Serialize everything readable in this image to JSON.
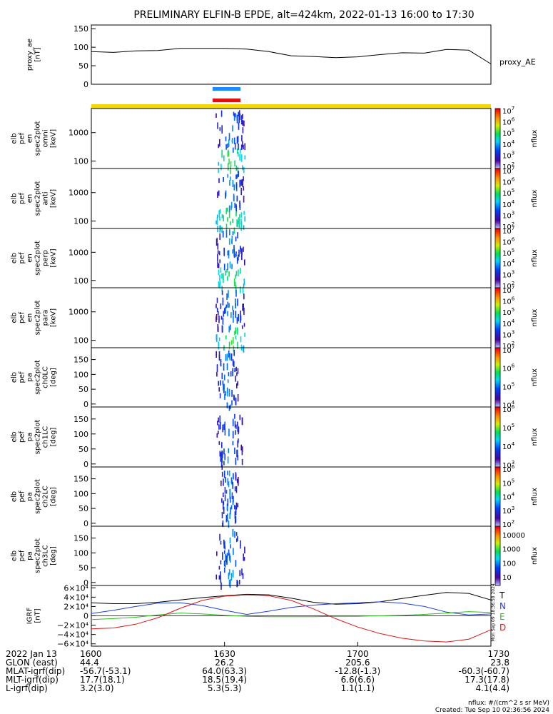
{
  "title": "PRELIMINARY ELFIN-B EPDE, alt=424km, 2022-01-13 16:00 to 17:30",
  "colors": {
    "blue_bar": "#1a8cff",
    "red_bar": "#e01010",
    "yellow_bar": "#f2d700",
    "trace_black": "#000000",
    "trace_blue": "#1f3fd8",
    "trace_green": "#2bbf1f",
    "trace_red": "#d81818"
  },
  "chart_data": [
    {
      "type": "line",
      "name": "proxy_ae",
      "ylabel_lines": [
        "proxy_ae",
        "[nT]"
      ],
      "legend": "proxy_AE",
      "ylim": [
        0,
        160
      ],
      "yticks": [
        0,
        50,
        100,
        150
      ],
      "x_minutes": [
        0,
        5,
        10,
        15,
        20,
        25,
        30,
        35,
        40,
        45,
        50,
        55,
        60,
        65,
        70,
        75,
        80,
        85,
        90
      ],
      "values": [
        88,
        86,
        90,
        91,
        97,
        97,
        97,
        95,
        88,
        77,
        75,
        72,
        74,
        80,
        85,
        84,
        94,
        92,
        55
      ]
    },
    {
      "type": "heatmap",
      "name": "spec2plot_omni",
      "ylabel_lines": [
        "elb",
        "pef",
        "en",
        "spec2plot",
        "omni",
        "[keV]"
      ],
      "yscale": "log",
      "ylim": [
        55,
        7000
      ],
      "yticks": [
        100,
        1000
      ],
      "cbar_ticks_exp": [
        2,
        3,
        4,
        5,
        6,
        7
      ],
      "cbar_label": "nflux",
      "activity_minutes": [
        28,
        34.5
      ]
    },
    {
      "type": "heatmap",
      "name": "spec2plot_anti",
      "ylabel_lines": [
        "elb",
        "pef",
        "en",
        "spec2plot",
        "anti",
        "[keV]"
      ],
      "yscale": "log",
      "ylim": [
        55,
        7000
      ],
      "yticks": [
        100,
        1000
      ],
      "cbar_ticks_exp": [
        2,
        3,
        4,
        5,
        6,
        7
      ],
      "cbar_label": "nflux",
      "activity_minutes": [
        28,
        34.5
      ]
    },
    {
      "type": "heatmap",
      "name": "spec2plot_perp",
      "ylabel_lines": [
        "elb",
        "pef",
        "en",
        "spec2plot",
        "perp",
        "[keV]"
      ],
      "yscale": "log",
      "ylim": [
        55,
        7000
      ],
      "yticks": [
        100,
        1000
      ],
      "cbar_ticks_exp": [
        2,
        3,
        4,
        5,
        6,
        7
      ],
      "cbar_label": "nflux",
      "activity_minutes": [
        28,
        34.5
      ]
    },
    {
      "type": "heatmap",
      "name": "spec2plot_para",
      "ylabel_lines": [
        "elb",
        "pef",
        "en",
        "spec2plot",
        "para",
        "[keV]"
      ],
      "yscale": "log",
      "ylim": [
        55,
        7000
      ],
      "yticks": [
        100,
        1000
      ],
      "cbar_ticks_exp": [
        2,
        3,
        4,
        5,
        6,
        7
      ],
      "cbar_label": "nflux",
      "activity_minutes": [
        28,
        34.5
      ]
    },
    {
      "type": "heatmap",
      "name": "spec2plot_ch0LC",
      "ylabel_lines": [
        "elb",
        "pef",
        "pa",
        "spec2plot",
        "ch0LC",
        "[deg]"
      ],
      "yscale": "linear",
      "ylim": [
        -10,
        190
      ],
      "yticks": [
        0,
        50,
        100,
        150
      ],
      "cbar_ticks_exp": [
        4,
        5,
        6,
        7
      ],
      "cbar_label": "nflux",
      "activity_minutes": [
        28,
        33
      ]
    },
    {
      "type": "heatmap",
      "name": "spec2plot_ch1LC",
      "ylabel_lines": [
        "elb",
        "pef",
        "pa",
        "spec2plot",
        "ch1LC",
        "[deg]"
      ],
      "yscale": "linear",
      "ylim": [
        -10,
        190
      ],
      "yticks": [
        0,
        50,
        100,
        150
      ],
      "cbar_ticks_exp": [
        3,
        4,
        5,
        6
      ],
      "cbar_label": "nflux",
      "activity_minutes": [
        28,
        34
      ]
    },
    {
      "type": "heatmap",
      "name": "spec2plot_ch2LC",
      "ylabel_lines": [
        "elb",
        "pef",
        "pa",
        "spec2plot",
        "ch2LC",
        "[deg]"
      ],
      "yscale": "linear",
      "ylim": [
        -10,
        190
      ],
      "yticks": [
        0,
        50,
        100,
        150
      ],
      "cbar_ticks_exp": [
        2,
        3,
        4,
        5,
        6
      ],
      "cbar_label": "nflux",
      "activity_minutes": [
        29,
        33
      ]
    },
    {
      "type": "heatmap",
      "name": "spec2plot_ch3LC",
      "ylabel_lines": [
        "elb",
        "pef",
        "pa",
        "spec2plot",
        "ch3LC",
        "[deg]"
      ],
      "yscale": "linear",
      "ylim": [
        -10,
        190
      ],
      "yticks": [
        0,
        50,
        100,
        150
      ],
      "cbar_ticks_lin": [
        "10",
        "100",
        "1000",
        "10000"
      ],
      "cbar_label": "nflux",
      "activity_minutes": [
        28,
        34.5
      ]
    },
    {
      "type": "line",
      "name": "IGRF",
      "ylabel_lines": [
        "IGRF",
        "[nT]"
      ],
      "ylim": [
        -65000,
        65000
      ],
      "ytick_values": [
        60000,
        40000,
        20000,
        0,
        -20000,
        -40000,
        -60000
      ],
      "ytick_labels": [
        "6×10⁴",
        "4×10⁴",
        "2×10⁴",
        "0",
        "−2×10⁴",
        "−4×10⁴",
        "−6×10⁴"
      ],
      "x_minutes": [
        0,
        5,
        10,
        15,
        20,
        25,
        30,
        35,
        40,
        45,
        50,
        55,
        60,
        65,
        70,
        75,
        80,
        85,
        90
      ],
      "series": [
        {
          "name": "T",
          "color": "#000000",
          "values": [
            28000,
            26000,
            26000,
            29000,
            34000,
            39000,
            43000,
            46000,
            45000,
            38000,
            29000,
            25000,
            26000,
            30000,
            37000,
            44000,
            50000,
            48000,
            34000
          ]
        },
        {
          "name": "N",
          "color": "#1f3fd8",
          "values": [
            5000,
            12000,
            20000,
            27000,
            28000,
            22000,
            12000,
            3000,
            10000,
            18000,
            23000,
            26000,
            28000,
            30000,
            27000,
            20000,
            8000,
            2000,
            4000
          ]
        },
        {
          "name": "E",
          "color": "#2bbf1f",
          "values": [
            -8000,
            -6000,
            -3000,
            2000,
            6000,
            4000,
            1000,
            -1000,
            -2000,
            -2000,
            -2000,
            -1000,
            -1000,
            0,
            1000,
            3000,
            6000,
            9000,
            7000
          ]
        },
        {
          "name": "D",
          "color": "#d81818",
          "values": [
            -28000,
            -26000,
            -18000,
            -4000,
            16000,
            33000,
            42000,
            45000,
            43000,
            33000,
            15000,
            -6000,
            -24000,
            -38000,
            -48000,
            -54000,
            -56000,
            -50000,
            -30000
          ]
        }
      ]
    }
  ],
  "x_axis": {
    "labels": [
      "1600",
      "1630",
      "1700",
      "1730"
    ],
    "label_minutes": [
      0,
      30,
      60,
      90
    ]
  },
  "ephemeris": {
    "rows": [
      {
        "label": "2022 Jan 13",
        "values": [
          "1600",
          "1630",
          "1700",
          "1730"
        ]
      },
      {
        "label": "GLON (east)",
        "values": [
          "44.4",
          "26.2",
          "205.6",
          "23.8"
        ]
      },
      {
        "label": "MLAT-igrf(dip)",
        "values": [
          "-56.7(-53.1)",
          "64.0(63.3)",
          "-12.8(-1.3)",
          "-60.3(-60.7)"
        ]
      },
      {
        "label": "MLT-igrf(dip)",
        "values": [
          "17.7(18.1)",
          "18.5(19.4)",
          "6.6(6.6)",
          "17.3(17.8)"
        ]
      },
      {
        "label": "L-igrf(dip)",
        "values": [
          "3.2(3.0)",
          "5.3(5.3)",
          "1.1(1.1)",
          "4.1(4.4)"
        ]
      }
    ]
  },
  "footer": {
    "units": "nflux: #/(cm^2 s sr MeV)",
    "created": "Created: Tue Sep 10 02:36:56 2024",
    "side_stamp": "Mon Sep 09 18:36:58 2024"
  }
}
